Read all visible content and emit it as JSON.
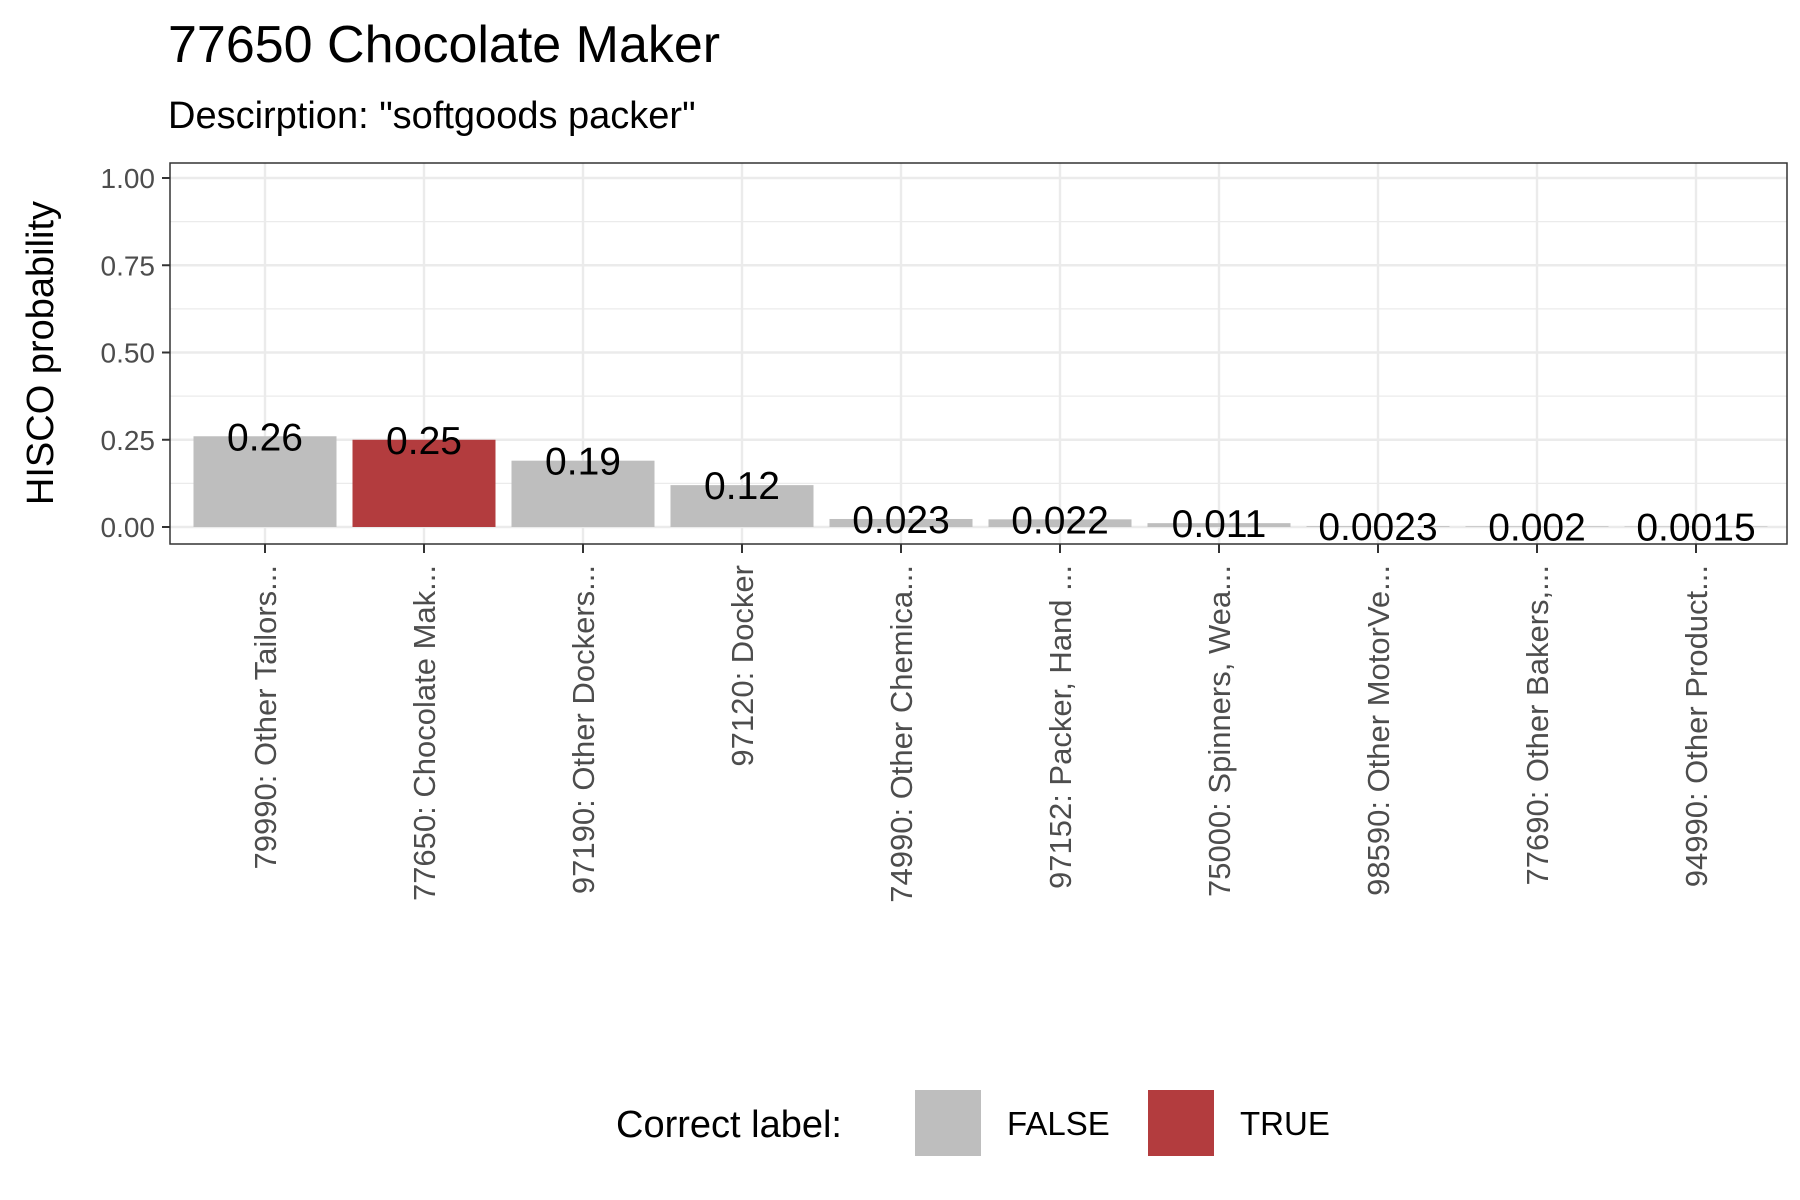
{
  "chart_data": {
    "type": "bar",
    "title": "77650 Chocolate Maker",
    "subtitle": "Descirption: \"softgoods packer\"",
    "xlabel": "",
    "ylabel": "HISCO probability",
    "ylim": [
      0,
      1.0
    ],
    "yticks": [
      "0.00",
      "0.25",
      "0.50",
      "0.75",
      "1.00"
    ],
    "ytick_values": [
      0,
      0.25,
      0.5,
      0.75,
      1.0
    ],
    "grid": true,
    "categories": [
      "79990: Other Tailors...",
      "77650: Chocolate Mak...",
      "97190: Other Dockers...",
      "97120: Docker",
      "74990: Other Chemica...",
      "97152: Packer, Hand ...",
      "75000: Spinners, Wea...",
      "98590: Other MotorVe...",
      "77690: Other Bakers,...",
      "94990: Other Product..."
    ],
    "values": [
      0.26,
      0.25,
      0.19,
      0.12,
      0.023,
      0.022,
      0.011,
      0.0023,
      0.002,
      0.0015
    ],
    "value_labels": [
      "0.26",
      "0.25",
      "0.19",
      "0.12",
      "0.023",
      "0.022",
      "0.011",
      "0.0023",
      "0.002",
      "0.0015"
    ],
    "correct": [
      false,
      true,
      false,
      false,
      false,
      false,
      false,
      false,
      false,
      false
    ],
    "legend": {
      "title": "Correct label:",
      "position": "bottom",
      "entries": [
        {
          "label": "FALSE",
          "color": "#bebebe"
        },
        {
          "label": "TRUE",
          "color": "#b33c3e"
        }
      ]
    },
    "colors": {
      "false": "#bebebe",
      "true": "#b33c3e"
    }
  }
}
